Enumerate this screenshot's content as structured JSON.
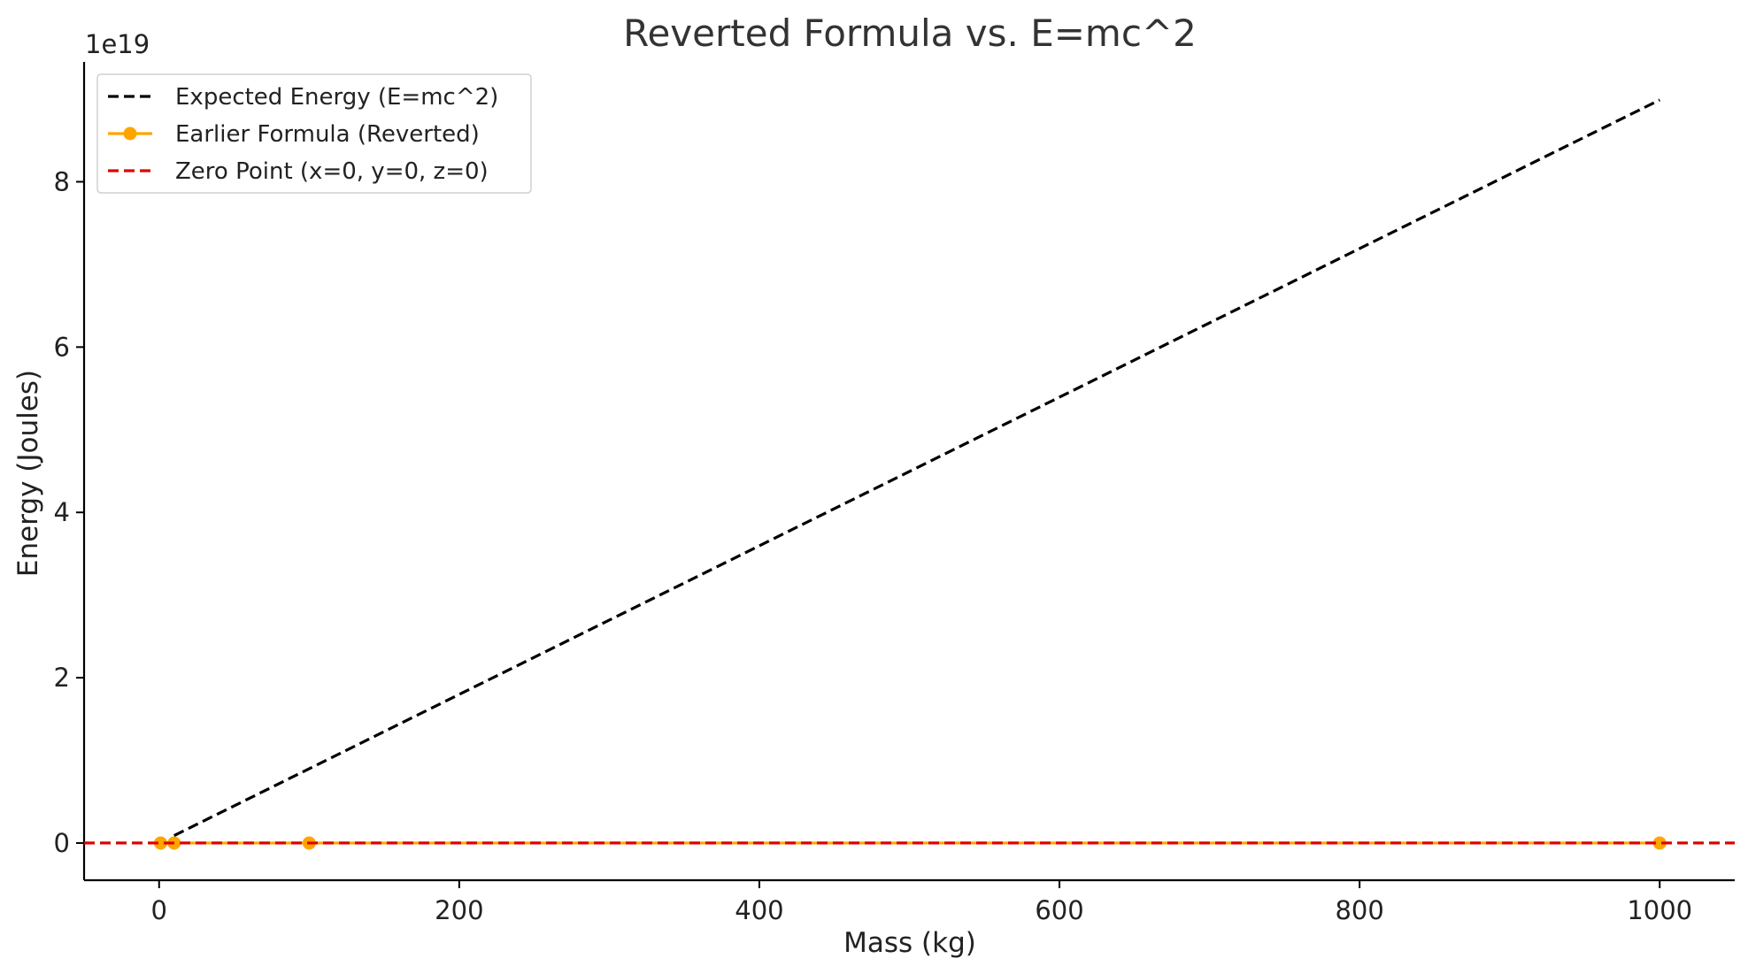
{
  "chart_data": {
    "type": "line",
    "title": "Reverted Formula vs. E=mc^2",
    "xlabel": "Mass (kg)",
    "ylabel": "Energy (Joules)",
    "y_offset_label": "1e19",
    "y_scale_factor": 1e+19,
    "xlim": [
      -50,
      1050
    ],
    "ylim": [
      -4.5e+18,
      9.45e+19
    ],
    "x_ticks": [
      0,
      200,
      400,
      600,
      800,
      1000
    ],
    "y_ticks": [
      0,
      2e+19,
      4e+19,
      6e+19,
      8e+19
    ],
    "x_tick_labels": [
      "0",
      "200",
      "400",
      "600",
      "800",
      "1000"
    ],
    "y_tick_labels": [
      "0",
      "2",
      "4",
      "6",
      "8"
    ],
    "grid": false,
    "legend_position": "top-left",
    "series": [
      {
        "name": "Expected Energy (E=mc^2)",
        "style": "dashed",
        "color": "#000000",
        "markers": false,
        "x": [
          10,
          1000
        ],
        "y": [
          9e+17,
          8.99e+19
        ]
      },
      {
        "name": "Earlier Formula (Reverted)",
        "style": "solid",
        "color": "#FFA500",
        "markers": true,
        "x": [
          1,
          10,
          100,
          1000
        ],
        "y": [
          0,
          0,
          0,
          0
        ]
      },
      {
        "name": "Zero Point (x=0, y=0, z=0)",
        "style": "dashed",
        "color": "#E00000",
        "markers": false,
        "hline": 0
      }
    ]
  }
}
